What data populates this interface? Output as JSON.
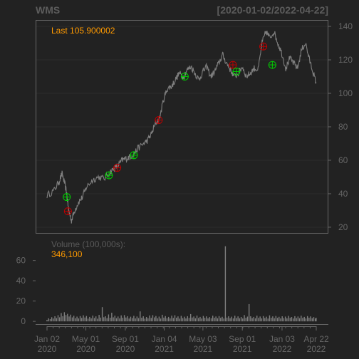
{
  "chart_data": {
    "type": "line",
    "symbol": "WMS",
    "date_range": "[2020-01-02/2022-04-22]",
    "last_label": "Last 105.900002",
    "volume_label": "Volume (100,000s):",
    "volume_value": "346,100",
    "price_axis": {
      "ylim": [
        17,
        143
      ],
      "ticks": [
        20,
        40,
        60,
        80,
        100,
        120,
        140
      ]
    },
    "volume_axis": {
      "ylim": [
        -2,
        78
      ],
      "ticks": [
        0,
        20,
        40,
        60
      ]
    },
    "x_ticks": [
      {
        "line1": "Jan 02",
        "line2": "2020",
        "t": 0
      },
      {
        "line1": "May 01",
        "line2": "2020",
        "t": 0.0985
      },
      {
        "line1": "Sep 01",
        "line2": "2020",
        "t": 0.1984
      },
      {
        "line1": "Jan 04",
        "line2": "2021",
        "t": 0.2971
      },
      {
        "line1": "May 03",
        "line2": "2021",
        "t": 0.3951
      },
      {
        "line1": "Sep 01",
        "line2": "2021",
        "t": 0.4949
      },
      {
        "line1": "Jan 03",
        "line2": "2022",
        "t": 0.5956
      },
      {
        "line1": "Apr 22",
        "line2": "2022",
        "t": 0.6823
      }
    ],
    "x_span": [
      -0.01,
      0.69
    ],
    "price_series": [
      [
        0,
        39
      ],
      [
        0.018,
        42
      ],
      [
        0.03,
        47
      ],
      [
        0.038,
        52
      ],
      [
        0.045,
        46
      ],
      [
        0.05,
        40
      ],
      [
        0.055,
        30
      ],
      [
        0.062,
        24
      ],
      [
        0.07,
        30
      ],
      [
        0.08,
        35
      ],
      [
        0.09,
        38
      ],
      [
        0.1,
        44
      ],
      [
        0.115,
        48
      ],
      [
        0.13,
        50
      ],
      [
        0.145,
        49
      ],
      [
        0.16,
        53
      ],
      [
        0.17,
        55
      ],
      [
        0.18,
        57
      ],
      [
        0.19,
        60
      ],
      [
        0.2,
        61
      ],
      [
        0.21,
        62
      ],
      [
        0.22,
        64
      ],
      [
        0.23,
        67
      ],
      [
        0.245,
        70
      ],
      [
        0.255,
        72
      ],
      [
        0.265,
        76
      ],
      [
        0.275,
        82
      ],
      [
        0.285,
        85
      ],
      [
        0.295,
        96
      ],
      [
        0.305,
        103
      ],
      [
        0.315,
        104
      ],
      [
        0.325,
        108
      ],
      [
        0.335,
        112
      ],
      [
        0.345,
        110
      ],
      [
        0.355,
        114
      ],
      [
        0.365,
        116
      ],
      [
        0.375,
        112
      ],
      [
        0.385,
        108
      ],
      [
        0.395,
        113
      ],
      [
        0.405,
        116
      ],
      [
        0.415,
        110
      ],
      [
        0.425,
        113
      ],
      [
        0.435,
        118
      ],
      [
        0.445,
        123
      ],
      [
        0.455,
        118
      ],
      [
        0.465,
        114
      ],
      [
        0.475,
        110
      ],
      [
        0.485,
        112
      ],
      [
        0.495,
        116
      ],
      [
        0.505,
        110
      ],
      [
        0.515,
        112
      ],
      [
        0.525,
        115
      ],
      [
        0.535,
        114
      ],
      [
        0.545,
        130
      ],
      [
        0.555,
        137
      ],
      [
        0.565,
        133
      ],
      [
        0.575,
        137
      ],
      [
        0.585,
        130
      ],
      [
        0.595,
        124
      ],
      [
        0.605,
        115
      ],
      [
        0.615,
        121
      ],
      [
        0.625,
        118
      ],
      [
        0.635,
        115
      ],
      [
        0.645,
        126
      ],
      [
        0.655,
        130
      ],
      [
        0.665,
        120
      ],
      [
        0.675,
        112
      ],
      [
        0.682,
        106
      ]
    ],
    "buy_signals": [
      {
        "t": 0.05,
        "y": 38
      },
      {
        "t": 0.157,
        "y": 51
      },
      {
        "t": 0.22,
        "y": 63
      },
      {
        "t": 0.349,
        "y": 110
      },
      {
        "t": 0.48,
        "y": 113
      },
      {
        "t": 0.571,
        "y": 117
      }
    ],
    "sell_signals": [
      {
        "t": 0.053,
        "y": 29.5
      },
      {
        "t": 0.178,
        "y": 55.5
      },
      {
        "t": 0.283,
        "y": 84
      },
      {
        "t": 0.471,
        "y": 117
      },
      {
        "t": 0.548,
        "y": 128
      }
    ],
    "volume_series": [
      [
        0.0,
        1.5
      ],
      [
        0.004,
        3.0
      ],
      [
        0.008,
        2.2
      ],
      [
        0.012,
        4.1
      ],
      [
        0.016,
        2.8
      ],
      [
        0.02,
        5.0
      ],
      [
        0.024,
        3.2
      ],
      [
        0.028,
        6.1
      ],
      [
        0.032,
        4.0
      ],
      [
        0.036,
        8.2
      ],
      [
        0.04,
        5.1
      ],
      [
        0.044,
        9.0
      ],
      [
        0.048,
        6.2
      ],
      [
        0.052,
        7.4
      ],
      [
        0.056,
        4.8
      ],
      [
        0.06,
        6.6
      ],
      [
        0.064,
        3.9
      ],
      [
        0.068,
        5.5
      ],
      [
        0.072,
        3.1
      ],
      [
        0.076,
        4.7
      ],
      [
        0.08,
        2.9
      ],
      [
        0.084,
        5.2
      ],
      [
        0.088,
        3.4
      ],
      [
        0.092,
        6.0
      ],
      [
        0.096,
        3.8
      ],
      [
        0.1,
        5.3
      ],
      [
        0.104,
        2.7
      ],
      [
        0.108,
        4.4
      ],
      [
        0.112,
        3.0
      ],
      [
        0.116,
        5.7
      ],
      [
        0.12,
        3.3
      ],
      [
        0.124,
        4.9
      ],
      [
        0.128,
        2.6
      ],
      [
        0.132,
        6.4
      ],
      [
        0.136,
        3.7
      ],
      [
        0.14,
        14.0
      ],
      [
        0.144,
        4.1
      ],
      [
        0.148,
        5.0
      ],
      [
        0.152,
        3.2
      ],
      [
        0.156,
        6.8
      ],
      [
        0.16,
        3.6
      ],
      [
        0.164,
        8.5
      ],
      [
        0.168,
        4.0
      ],
      [
        0.172,
        5.6
      ],
      [
        0.176,
        3.1
      ],
      [
        0.18,
        4.8
      ],
      [
        0.184,
        2.9
      ],
      [
        0.188,
        5.9
      ],
      [
        0.192,
        3.5
      ],
      [
        0.196,
        6.2
      ],
      [
        0.2,
        3.8
      ],
      [
        0.204,
        5.1
      ],
      [
        0.208,
        2.8
      ],
      [
        0.212,
        4.6
      ],
      [
        0.216,
        3.3
      ],
      [
        0.22,
        5.4
      ],
      [
        0.224,
        2.9
      ],
      [
        0.228,
        4.8
      ],
      [
        0.232,
        3.2
      ],
      [
        0.236,
        9.8
      ],
      [
        0.24,
        3.6
      ],
      [
        0.244,
        5.0
      ],
      [
        0.248,
        2.7
      ],
      [
        0.252,
        4.3
      ],
      [
        0.256,
        3.1
      ],
      [
        0.26,
        5.8
      ],
      [
        0.264,
        3.4
      ],
      [
        0.268,
        6.1
      ],
      [
        0.272,
        3.9
      ],
      [
        0.276,
        5.3
      ],
      [
        0.28,
        3.0
      ],
      [
        0.284,
        4.7
      ],
      [
        0.288,
        2.8
      ],
      [
        0.292,
        6.5
      ],
      [
        0.296,
        3.7
      ],
      [
        0.3,
        5.2
      ],
      [
        0.304,
        3.1
      ],
      [
        0.308,
        4.4
      ],
      [
        0.312,
        2.9
      ],
      [
        0.316,
        5.6
      ],
      [
        0.32,
        3.3
      ],
      [
        0.324,
        6.0
      ],
      [
        0.328,
        3.6
      ],
      [
        0.332,
        4.9
      ],
      [
        0.336,
        2.7
      ],
      [
        0.34,
        5.4
      ],
      [
        0.344,
        3.2
      ],
      [
        0.348,
        4.6
      ],
      [
        0.352,
        2.9
      ],
      [
        0.356,
        5.1
      ],
      [
        0.36,
        3.4
      ],
      [
        0.364,
        7.2
      ],
      [
        0.368,
        3.8
      ],
      [
        0.372,
        4.8
      ],
      [
        0.376,
        3.0
      ],
      [
        0.38,
        5.7
      ],
      [
        0.384,
        3.3
      ],
      [
        0.388,
        4.4
      ],
      [
        0.392,
        2.8
      ],
      [
        0.396,
        5.3
      ],
      [
        0.4,
        3.5
      ],
      [
        0.404,
        4.9
      ],
      [
        0.408,
        2.9
      ],
      [
        0.412,
        4.2
      ],
      [
        0.416,
        3.1
      ],
      [
        0.42,
        5.6
      ],
      [
        0.424,
        3.6
      ],
      [
        0.428,
        4.8
      ],
      [
        0.432,
        3.0
      ],
      [
        0.436,
        5.2
      ],
      [
        0.44,
        3.4
      ],
      [
        0.444,
        4.5
      ],
      [
        0.448,
        2.8
      ],
      [
        0.452,
        74.0
      ],
      [
        0.456,
        3.7
      ],
      [
        0.46,
        5.0
      ],
      [
        0.464,
        3.1
      ],
      [
        0.468,
        4.6
      ],
      [
        0.472,
        2.9
      ],
      [
        0.476,
        5.5
      ],
      [
        0.48,
        3.3
      ],
      [
        0.484,
        4.9
      ],
      [
        0.488,
        3.0
      ],
      [
        0.492,
        4.3
      ],
      [
        0.496,
        2.8
      ],
      [
        0.5,
        6.2
      ],
      [
        0.504,
        3.5
      ],
      [
        0.508,
        4.7
      ],
      [
        0.512,
        17.0
      ],
      [
        0.516,
        5.0
      ],
      [
        0.52,
        3.2
      ],
      [
        0.524,
        4.4
      ],
      [
        0.528,
        3.0
      ],
      [
        0.532,
        5.6
      ],
      [
        0.536,
        3.4
      ],
      [
        0.54,
        4.8
      ],
      [
        0.544,
        2.9
      ],
      [
        0.548,
        5.2
      ],
      [
        0.552,
        3.3
      ],
      [
        0.556,
        4.6
      ],
      [
        0.56,
        2.8
      ],
      [
        0.564,
        5.9
      ],
      [
        0.568,
        3.6
      ],
      [
        0.572,
        4.9
      ],
      [
        0.576,
        3.1
      ],
      [
        0.58,
        5.3
      ],
      [
        0.584,
        3.4
      ],
      [
        0.588,
        4.5
      ],
      [
        0.592,
        2.9
      ],
      [
        0.596,
        5.0
      ],
      [
        0.6,
        3.2
      ],
      [
        0.604,
        4.7
      ],
      [
        0.608,
        3.0
      ],
      [
        0.612,
        5.4
      ],
      [
        0.616,
        3.5
      ],
      [
        0.62,
        4.3
      ],
      [
        0.624,
        2.8
      ],
      [
        0.628,
        5.1
      ],
      [
        0.632,
        3.3
      ],
      [
        0.636,
        4.8
      ],
      [
        0.64,
        3.1
      ],
      [
        0.644,
        5.6
      ],
      [
        0.648,
        3.4
      ],
      [
        0.652,
        4.4
      ],
      [
        0.656,
        2.9
      ],
      [
        0.66,
        5.2
      ],
      [
        0.664,
        3.6
      ],
      [
        0.668,
        4.9
      ],
      [
        0.672,
        3.1
      ],
      [
        0.676,
        4.2
      ],
      [
        0.68,
        2.8
      ],
      [
        0.682,
        3.5
      ]
    ]
  },
  "colors": {
    "background": "#222222",
    "price_line": "#7f7f7f",
    "volume_bars": "#7f7f7f",
    "grid": "#2c2c2c",
    "axis": "#666666",
    "label_orange": "#ff9a00",
    "buy_marker": "#00d000",
    "sell_marker": "#c00000"
  }
}
